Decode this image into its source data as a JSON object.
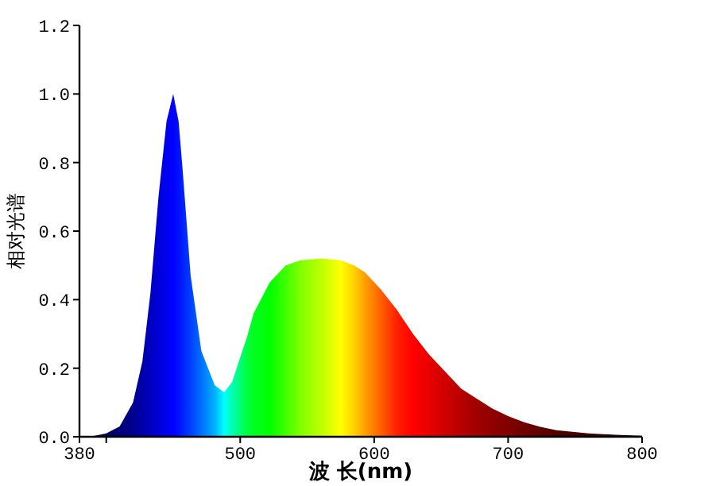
{
  "chart_data": {
    "type": "area",
    "xlabel": "波 长(nm)",
    "ylabel": "相对光谱",
    "xlim": [
      380,
      800
    ],
    "xticks": [
      380,
      {
        "value": 400,
        "label": null
      },
      500,
      600,
      700,
      800
    ],
    "ylim": [
      0,
      1.2
    ],
    "yticks": [
      {
        "value": 0,
        "label": "0.0"
      },
      0.2,
      0.4,
      0.6,
      0.8,
      {
        "value": 1,
        "label": "1.0"
      },
      1.2
    ],
    "series": [
      {
        "x": [
          380,
          390,
          400,
          410,
          420,
          427,
          433,
          439,
          445,
          450,
          454,
          457,
          463,
          471,
          481,
          488,
          494,
          499,
          505,
          510,
          522,
          534,
          545,
          561,
          575,
          585,
          593,
          605,
          617,
          629,
          641,
          653,
          665,
          677,
          688,
          700,
          712,
          724,
          736,
          760,
          780,
          800
        ],
        "values": [
          0,
          0.002,
          0.01,
          0.03,
          0.1,
          0.22,
          0.42,
          0.7,
          0.92,
          1.0,
          0.92,
          0.78,
          0.47,
          0.25,
          0.15,
          0.13,
          0.16,
          0.22,
          0.29,
          0.36,
          0.45,
          0.5,
          0.515,
          0.52,
          0.515,
          0.5,
          0.48,
          0.43,
          0.37,
          0.3,
          0.24,
          0.19,
          0.14,
          0.11,
          0.083,
          0.06,
          0.042,
          0.029,
          0.019,
          0.01,
          0.006,
          0.003
        ],
        "colors": [
          "#000040",
          "#000050",
          "#000060",
          "#000078",
          "#000090",
          "#0000a8",
          "#0000c0",
          "#0000d8",
          "#0000f0",
          "#0000ff",
          "#0010ff",
          "#0020ff",
          "#0040ff",
          "#0070ff",
          "#00b0ff",
          "#00ffff",
          "#00ffb0",
          "#00ff80",
          "#00ff40",
          "#00ff20",
          "#00ff00",
          "#40ff00",
          "#80ff00",
          "#c0ff00",
          "#ffff00",
          "#ffd000",
          "#ffa000",
          "#ff6000",
          "#ff2000",
          "#ff0000",
          "#e80000",
          "#d00000",
          "#b80000",
          "#a00000",
          "#900000",
          "#800000",
          "#700000",
          "#600000",
          "#500000",
          "#400000",
          "#300000",
          "#200000"
        ]
      }
    ]
  }
}
